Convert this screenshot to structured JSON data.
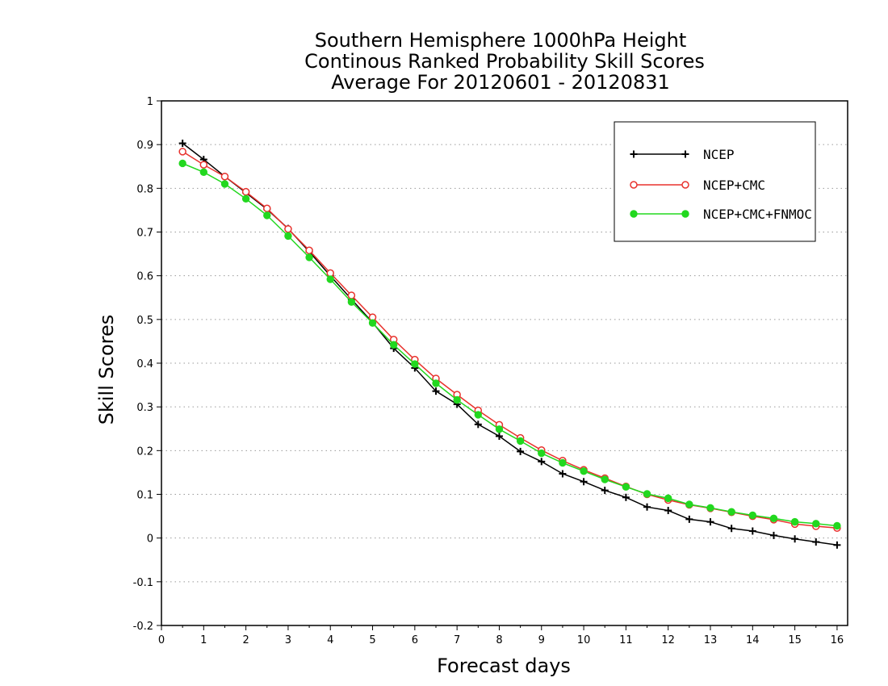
{
  "chart_data": {
    "type": "line",
    "title": [
      "Southern Hemisphere 1000hPa Height",
      "Continous Ranked Probability Skill Scores",
      "Average For 20120601 - 20120831"
    ],
    "xlabel": "Forecast days",
    "ylabel": "Skill Scores",
    "xlim": [
      0,
      16.25
    ],
    "ylim": [
      -0.2,
      1
    ],
    "xticks": [
      0,
      1,
      2,
      3,
      4,
      5,
      6,
      7,
      8,
      9,
      10,
      11,
      12,
      13,
      14,
      15,
      16
    ],
    "xtick_labels": [
      "0",
      "1",
      "2",
      "3",
      "4",
      "5",
      "6",
      "7",
      "8",
      "9",
      "10",
      "11",
      "12",
      "13",
      "14",
      "15",
      "16"
    ],
    "yticks": [
      -0.2,
      -0.1,
      0,
      0.1,
      0.2,
      0.3,
      0.4,
      0.5,
      0.6,
      0.7,
      0.8,
      0.9,
      1
    ],
    "ytick_labels": [
      "-0.2",
      "-0.1",
      "0",
      "0.1",
      "0.2",
      "0.3",
      "0.4",
      "0.5",
      "0.6",
      "0.7",
      "0.8",
      "0.9",
      "1"
    ],
    "grid": "horizontal dotted",
    "legend_position": "top-right",
    "x": [
      0.5,
      1,
      1.5,
      2,
      2.5,
      3,
      3.5,
      4,
      4.5,
      5,
      5.5,
      6,
      6.5,
      7,
      7.5,
      8,
      8.5,
      9,
      9.5,
      10,
      10.5,
      11,
      11.5,
      12,
      12.5,
      13,
      13.5,
      14,
      14.5,
      15,
      15.5,
      16
    ],
    "series": [
      {
        "name": "NCEP",
        "color": "#000000",
        "marker": "plus",
        "values": [
          0.903,
          0.866,
          0.827,
          0.79,
          0.752,
          0.708,
          0.655,
          0.6,
          0.546,
          0.493,
          0.434,
          0.389,
          0.336,
          0.306,
          0.26,
          0.233,
          0.198,
          0.175,
          0.147,
          0.129,
          0.109,
          0.093,
          0.071,
          0.063,
          0.043,
          0.037,
          0.022,
          0.016,
          0.006,
          -0.002,
          -0.009,
          -0.016
        ]
      },
      {
        "name": "NCEP+CMC",
        "color": "#e8322d",
        "marker": "open-circle",
        "values": [
          0.884,
          0.854,
          0.827,
          0.792,
          0.754,
          0.707,
          0.658,
          0.606,
          0.555,
          0.505,
          0.454,
          0.408,
          0.365,
          0.328,
          0.292,
          0.259,
          0.229,
          0.201,
          0.177,
          0.156,
          0.137,
          0.118,
          0.1,
          0.087,
          0.076,
          0.068,
          0.059,
          0.05,
          0.042,
          0.032,
          0.027,
          0.023
        ]
      },
      {
        "name": "NCEP+CMC+FNMOC",
        "color": "#22d81f",
        "marker": "filled-circle",
        "values": [
          0.857,
          0.837,
          0.81,
          0.776,
          0.738,
          0.691,
          0.642,
          0.592,
          0.54,
          0.492,
          0.442,
          0.398,
          0.354,
          0.316,
          0.282,
          0.249,
          0.222,
          0.194,
          0.172,
          0.153,
          0.134,
          0.117,
          0.101,
          0.091,
          0.077,
          0.069,
          0.06,
          0.052,
          0.045,
          0.037,
          0.033,
          0.028
        ]
      }
    ]
  }
}
